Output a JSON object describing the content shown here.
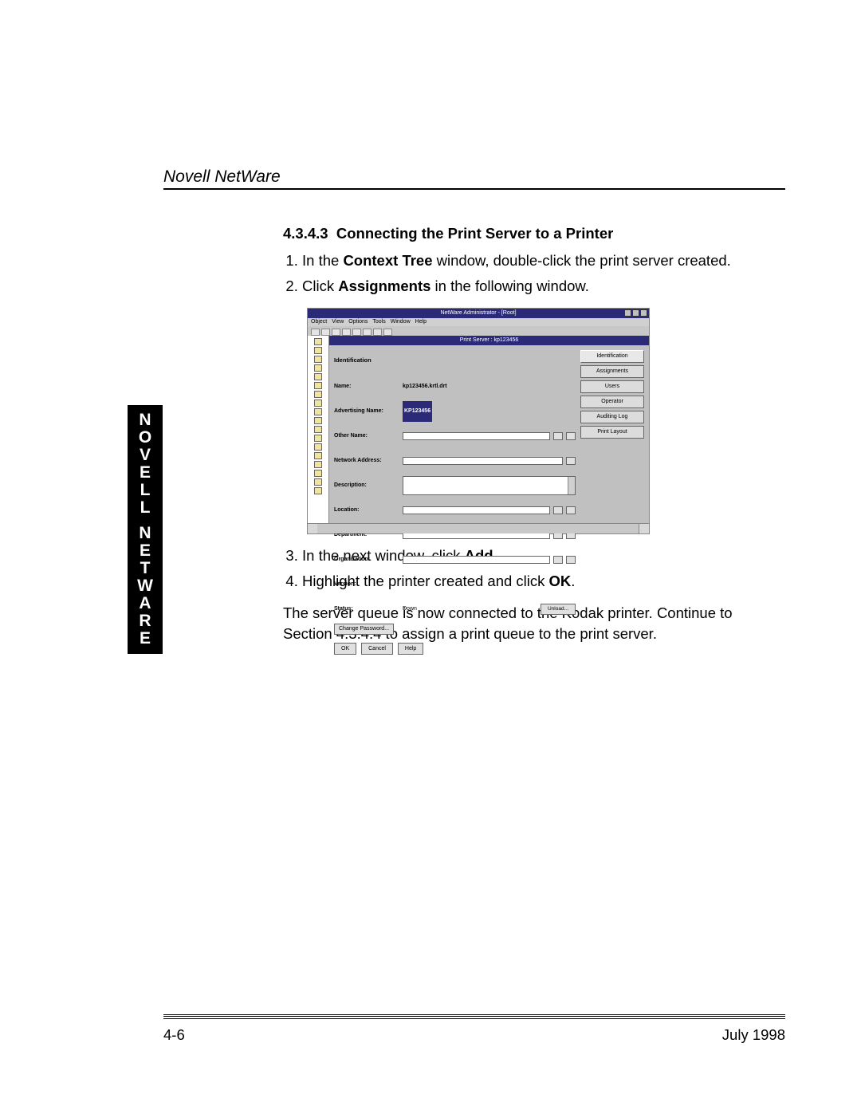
{
  "header": {
    "title": "Novell NetWare"
  },
  "side_tab": {
    "line1": [
      "N",
      "O",
      "V",
      "E",
      "L",
      "L"
    ],
    "line2": [
      "N",
      "E",
      "T",
      "W",
      "A",
      "R",
      "E"
    ]
  },
  "section": {
    "number": "4.3.4.3",
    "title": "Connecting the Print Server to a Printer"
  },
  "list_a": [
    {
      "pre": "In the ",
      "b": "Context Tree",
      "post": " window, double-click the print server created."
    },
    {
      "pre": "Click ",
      "b": "Assignments",
      "post": " in the following window."
    }
  ],
  "list_b": [
    {
      "pre": "In the next window, click ",
      "b": "Add",
      "post": "."
    },
    {
      "pre": "Highlight the printer created and click ",
      "b": "OK",
      "post": "."
    }
  ],
  "paragraph": "The server queue is now connected to the Kodak printer. Continue to Section 4.3.4.4 to assign a print queue to the print server.",
  "footer": {
    "left": "4-6",
    "right": "July 1998"
  },
  "screenshot": {
    "app_title": "NetWare Administrator - [Root]",
    "menu": [
      "Object",
      "View",
      "Options",
      "Tools",
      "Window",
      "Help"
    ],
    "dialog_title": "Print Server : kp123456",
    "form": {
      "heading": "Identification",
      "name_label": "Name:",
      "name_value": "kp123456.krtl.drt",
      "advertising_label": "Advertising Name:",
      "advertising_value": "KP123456",
      "other_name_label": "Other Name:",
      "network_addr_label": "Network Address:",
      "description_label": "Description:",
      "location_label": "Location:",
      "department_label": "Department:",
      "organization_label": "Organization:",
      "version_label": "Version:",
      "status_label": "Status:",
      "status_value": "Down",
      "unload_btn": "Unload...",
      "change_pw_btn": "Change Password..."
    },
    "side_buttons": [
      "Identification",
      "Assignments",
      "Users",
      "Operator",
      "Auditing Log",
      "Print Layout"
    ],
    "dialog_buttons": [
      "OK",
      "Cancel",
      "Help"
    ]
  }
}
